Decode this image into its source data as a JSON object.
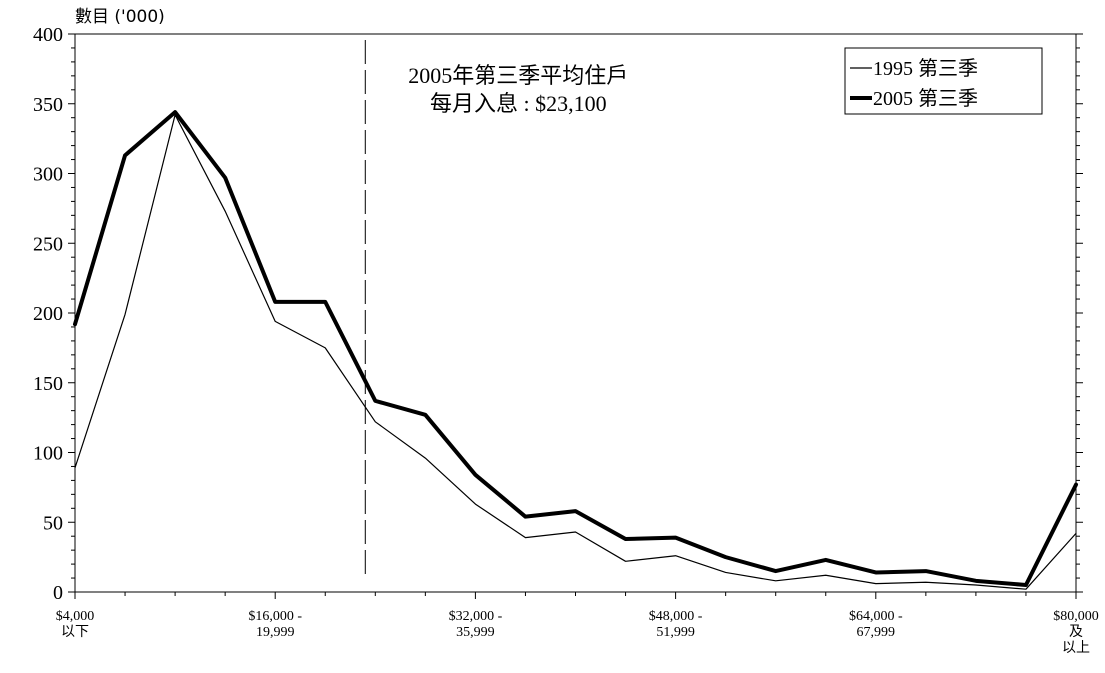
{
  "chart_data": {
    "type": "line",
    "ylabel": "數目 ('000)",
    "ylim": [
      0,
      400
    ],
    "yticks": [
      0,
      50,
      100,
      150,
      200,
      250,
      300,
      350,
      400
    ],
    "x_count": 21,
    "x_tick_labels": [
      {
        "index": 0,
        "lines": [
          "$4,000",
          "以下"
        ]
      },
      {
        "index": 4,
        "lines": [
          "$16,000 -",
          "19,999"
        ]
      },
      {
        "index": 8,
        "lines": [
          "$32,000 -",
          "35,999"
        ]
      },
      {
        "index": 12,
        "lines": [
          "$48,000 -",
          "51,999"
        ]
      },
      {
        "index": 16,
        "lines": [
          "$64,000 -",
          "67,999"
        ]
      },
      {
        "index": 20,
        "lines": [
          "$80,000",
          "及",
          "以上"
        ]
      }
    ],
    "series": [
      {
        "name": "1995 第三季",
        "color": "#000000",
        "style": "thin",
        "values": [
          89,
          199,
          342,
          273,
          194,
          175,
          122,
          96,
          63,
          39,
          43,
          22,
          26,
          14,
          8,
          12,
          6,
          7,
          5,
          2,
          42
        ]
      },
      {
        "name": "2005 第三季",
        "color": "#000000",
        "style": "thick",
        "values": [
          192,
          313,
          344,
          297,
          208,
          208,
          137,
          127,
          84,
          54,
          58,
          38,
          39,
          25,
          15,
          23,
          14,
          15,
          8,
          5,
          77
        ]
      }
    ],
    "reference_line": {
      "x_index": 5.8,
      "style": "dashed"
    },
    "annotation": [
      "2005年第三季平均住戶",
      "每月入息 : $23,100"
    ],
    "legend_position": "top-right",
    "grid": false
  }
}
